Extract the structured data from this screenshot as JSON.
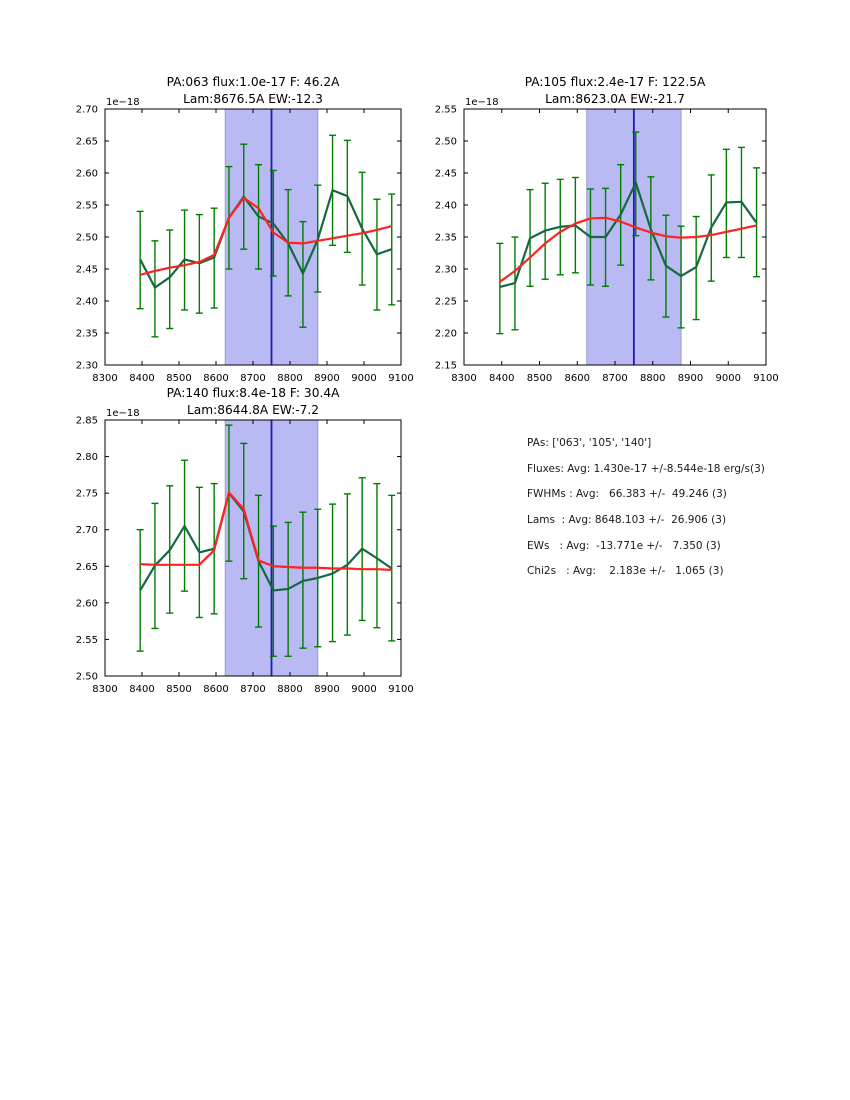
{
  "panel": {
    "lines": [
      "PAs: ['063', '105', '140']",
      "Fluxes: Avg: 1.430e-17 +/-8.544e-18 erg/s(3)",
      "FWHMs : Avg:   66.383 +/-  49.246 (3)",
      "Lams  : Avg: 8648.103 +/-  26.906 (3)",
      "EWs   : Avg:  -13.771e +/-   7.350 (3)",
      "Chi2s   : Avg:    2.183e +/-   1.065 (3)"
    ]
  },
  "colors": {
    "error_bar": "#007d00",
    "data_line": "#15693f",
    "fit_line": "#ff2222",
    "band_fill": "#b9b9f3",
    "band_edge": "#9d9dcf",
    "vline": "#1c1cb8",
    "frame": "#000000"
  },
  "chart_data": [
    {
      "type": "line",
      "id": "pa063",
      "title": "PA:063 flux:1.0e-17 F: 46.2A",
      "subtitle": "Lam:8676.5A EW:-12.3",
      "offset_label": "1e−18",
      "xlim": [
        8300,
        9100
      ],
      "xticks": [
        "8300",
        "8400",
        "8500",
        "8600",
        "8700",
        "8800",
        "8900",
        "9000",
        "9100"
      ],
      "ylim": [
        2.3,
        2.7
      ],
      "yticks": [
        "2.30",
        "2.35",
        "2.40",
        "2.45",
        "2.50",
        "2.55",
        "2.60",
        "2.65",
        "2.70"
      ],
      "band": [
        8625,
        8875
      ],
      "vline": 8750,
      "x": [
        8395,
        8435,
        8475,
        8515,
        8555,
        8595,
        8635,
        8675,
        8715,
        8755,
        8795,
        8835,
        8875,
        8915,
        8955,
        8995,
        9035,
        9075
      ],
      "series": [
        {
          "name": "data",
          "values": [
            2.465,
            2.421,
            2.437,
            2.465,
            2.459,
            2.468,
            2.53,
            2.563,
            2.532,
            2.521,
            2.49,
            2.443,
            2.496,
            2.573,
            2.564,
            2.513,
            2.473,
            2.481
          ],
          "err_lo": [
            2.388,
            2.344,
            2.357,
            2.386,
            2.381,
            2.389,
            2.45,
            2.481,
            2.45,
            2.439,
            2.408,
            2.359,
            2.414,
            2.487,
            2.476,
            2.425,
            2.386,
            2.394
          ],
          "err_hi": [
            2.54,
            2.494,
            2.511,
            2.542,
            2.535,
            2.545,
            2.61,
            2.645,
            2.613,
            2.604,
            2.574,
            2.524,
            2.581,
            2.659,
            2.651,
            2.601,
            2.559,
            2.567
          ]
        },
        {
          "name": "fit",
          "values": [
            2.441,
            2.447,
            2.452,
            2.456,
            2.461,
            2.472,
            2.53,
            2.561,
            2.545,
            2.507,
            2.491,
            2.49,
            2.494,
            2.498,
            2.502,
            2.506,
            2.511,
            2.517
          ]
        }
      ]
    },
    {
      "type": "line",
      "id": "pa105",
      "title": "PA:105 flux:2.4e-17 F: 122.5A",
      "subtitle": "Lam:8623.0A EW:-21.7",
      "offset_label": "1e−18",
      "xlim": [
        8300,
        9100
      ],
      "xticks": [
        "8300",
        "8400",
        "8500",
        "8600",
        "8700",
        "8800",
        "8900",
        "9000",
        "9100"
      ],
      "ylim": [
        2.15,
        2.55
      ],
      "yticks": [
        "2.15",
        "2.20",
        "2.25",
        "2.30",
        "2.35",
        "2.40",
        "2.45",
        "2.50",
        "2.55"
      ],
      "band": [
        8625,
        8875
      ],
      "vline": 8750,
      "x": [
        8395,
        8435,
        8475,
        8515,
        8555,
        8595,
        8635,
        8675,
        8715,
        8755,
        8795,
        8835,
        8875,
        8915,
        8955,
        8995,
        9035,
        9075
      ],
      "series": [
        {
          "name": "data",
          "values": [
            2.272,
            2.278,
            2.348,
            2.36,
            2.366,
            2.368,
            2.35,
            2.35,
            2.385,
            2.435,
            2.362,
            2.305,
            2.289,
            2.303,
            2.365,
            2.404,
            2.405,
            2.372
          ],
          "err_lo": [
            2.199,
            2.205,
            2.273,
            2.284,
            2.291,
            2.294,
            2.275,
            2.273,
            2.306,
            2.352,
            2.283,
            2.225,
            2.208,
            2.221,
            2.281,
            2.318,
            2.318,
            2.288
          ],
          "err_hi": [
            2.34,
            2.35,
            2.424,
            2.434,
            2.44,
            2.443,
            2.425,
            2.426,
            2.463,
            2.514,
            2.444,
            2.384,
            2.367,
            2.382,
            2.447,
            2.487,
            2.49,
            2.458
          ]
        },
        {
          "name": "fit",
          "values": [
            2.28,
            2.297,
            2.318,
            2.34,
            2.358,
            2.371,
            2.379,
            2.38,
            2.374,
            2.365,
            2.357,
            2.351,
            2.349,
            2.35,
            2.353,
            2.358,
            2.363,
            2.368
          ]
        }
      ]
    },
    {
      "type": "line",
      "id": "pa140",
      "title": "PA:140 flux:8.4e-18 F: 30.4A",
      "subtitle": "Lam:8644.8A EW:-7.2",
      "offset_label": "1e−18",
      "xlim": [
        8300,
        9100
      ],
      "xticks": [
        "8300",
        "8400",
        "8500",
        "8600",
        "8700",
        "8800",
        "8900",
        "9000",
        "9100"
      ],
      "ylim": [
        2.5,
        2.85
      ],
      "yticks": [
        "2.50",
        "2.55",
        "2.60",
        "2.65",
        "2.70",
        "2.75",
        "2.80",
        "2.85"
      ],
      "band": [
        8625,
        8875
      ],
      "vline": 8750,
      "x": [
        8395,
        8435,
        8475,
        8515,
        8555,
        8595,
        8635,
        8675,
        8715,
        8755,
        8795,
        8835,
        8875,
        8915,
        8955,
        8995,
        9035,
        9075
      ],
      "series": [
        {
          "name": "data",
          "values": [
            2.617,
            2.651,
            2.672,
            2.705,
            2.669,
            2.674,
            2.75,
            2.725,
            2.657,
            2.617,
            2.619,
            2.63,
            2.634,
            2.64,
            2.652,
            2.674,
            2.661,
            2.647
          ],
          "err_lo": [
            2.534,
            2.565,
            2.586,
            2.616,
            2.58,
            2.585,
            2.657,
            2.633,
            2.567,
            2.527,
            2.527,
            2.538,
            2.54,
            2.547,
            2.556,
            2.576,
            2.566,
            2.548
          ],
          "err_hi": [
            2.7,
            2.736,
            2.76,
            2.795,
            2.758,
            2.763,
            2.843,
            2.818,
            2.747,
            2.705,
            2.71,
            2.724,
            2.728,
            2.735,
            2.749,
            2.771,
            2.763,
            2.747
          ]
        },
        {
          "name": "fit",
          "values": [
            2.653,
            2.652,
            2.652,
            2.652,
            2.652,
            2.672,
            2.751,
            2.728,
            2.658,
            2.65,
            2.649,
            2.648,
            2.648,
            2.647,
            2.647,
            2.646,
            2.646,
            2.645
          ]
        }
      ]
    }
  ]
}
